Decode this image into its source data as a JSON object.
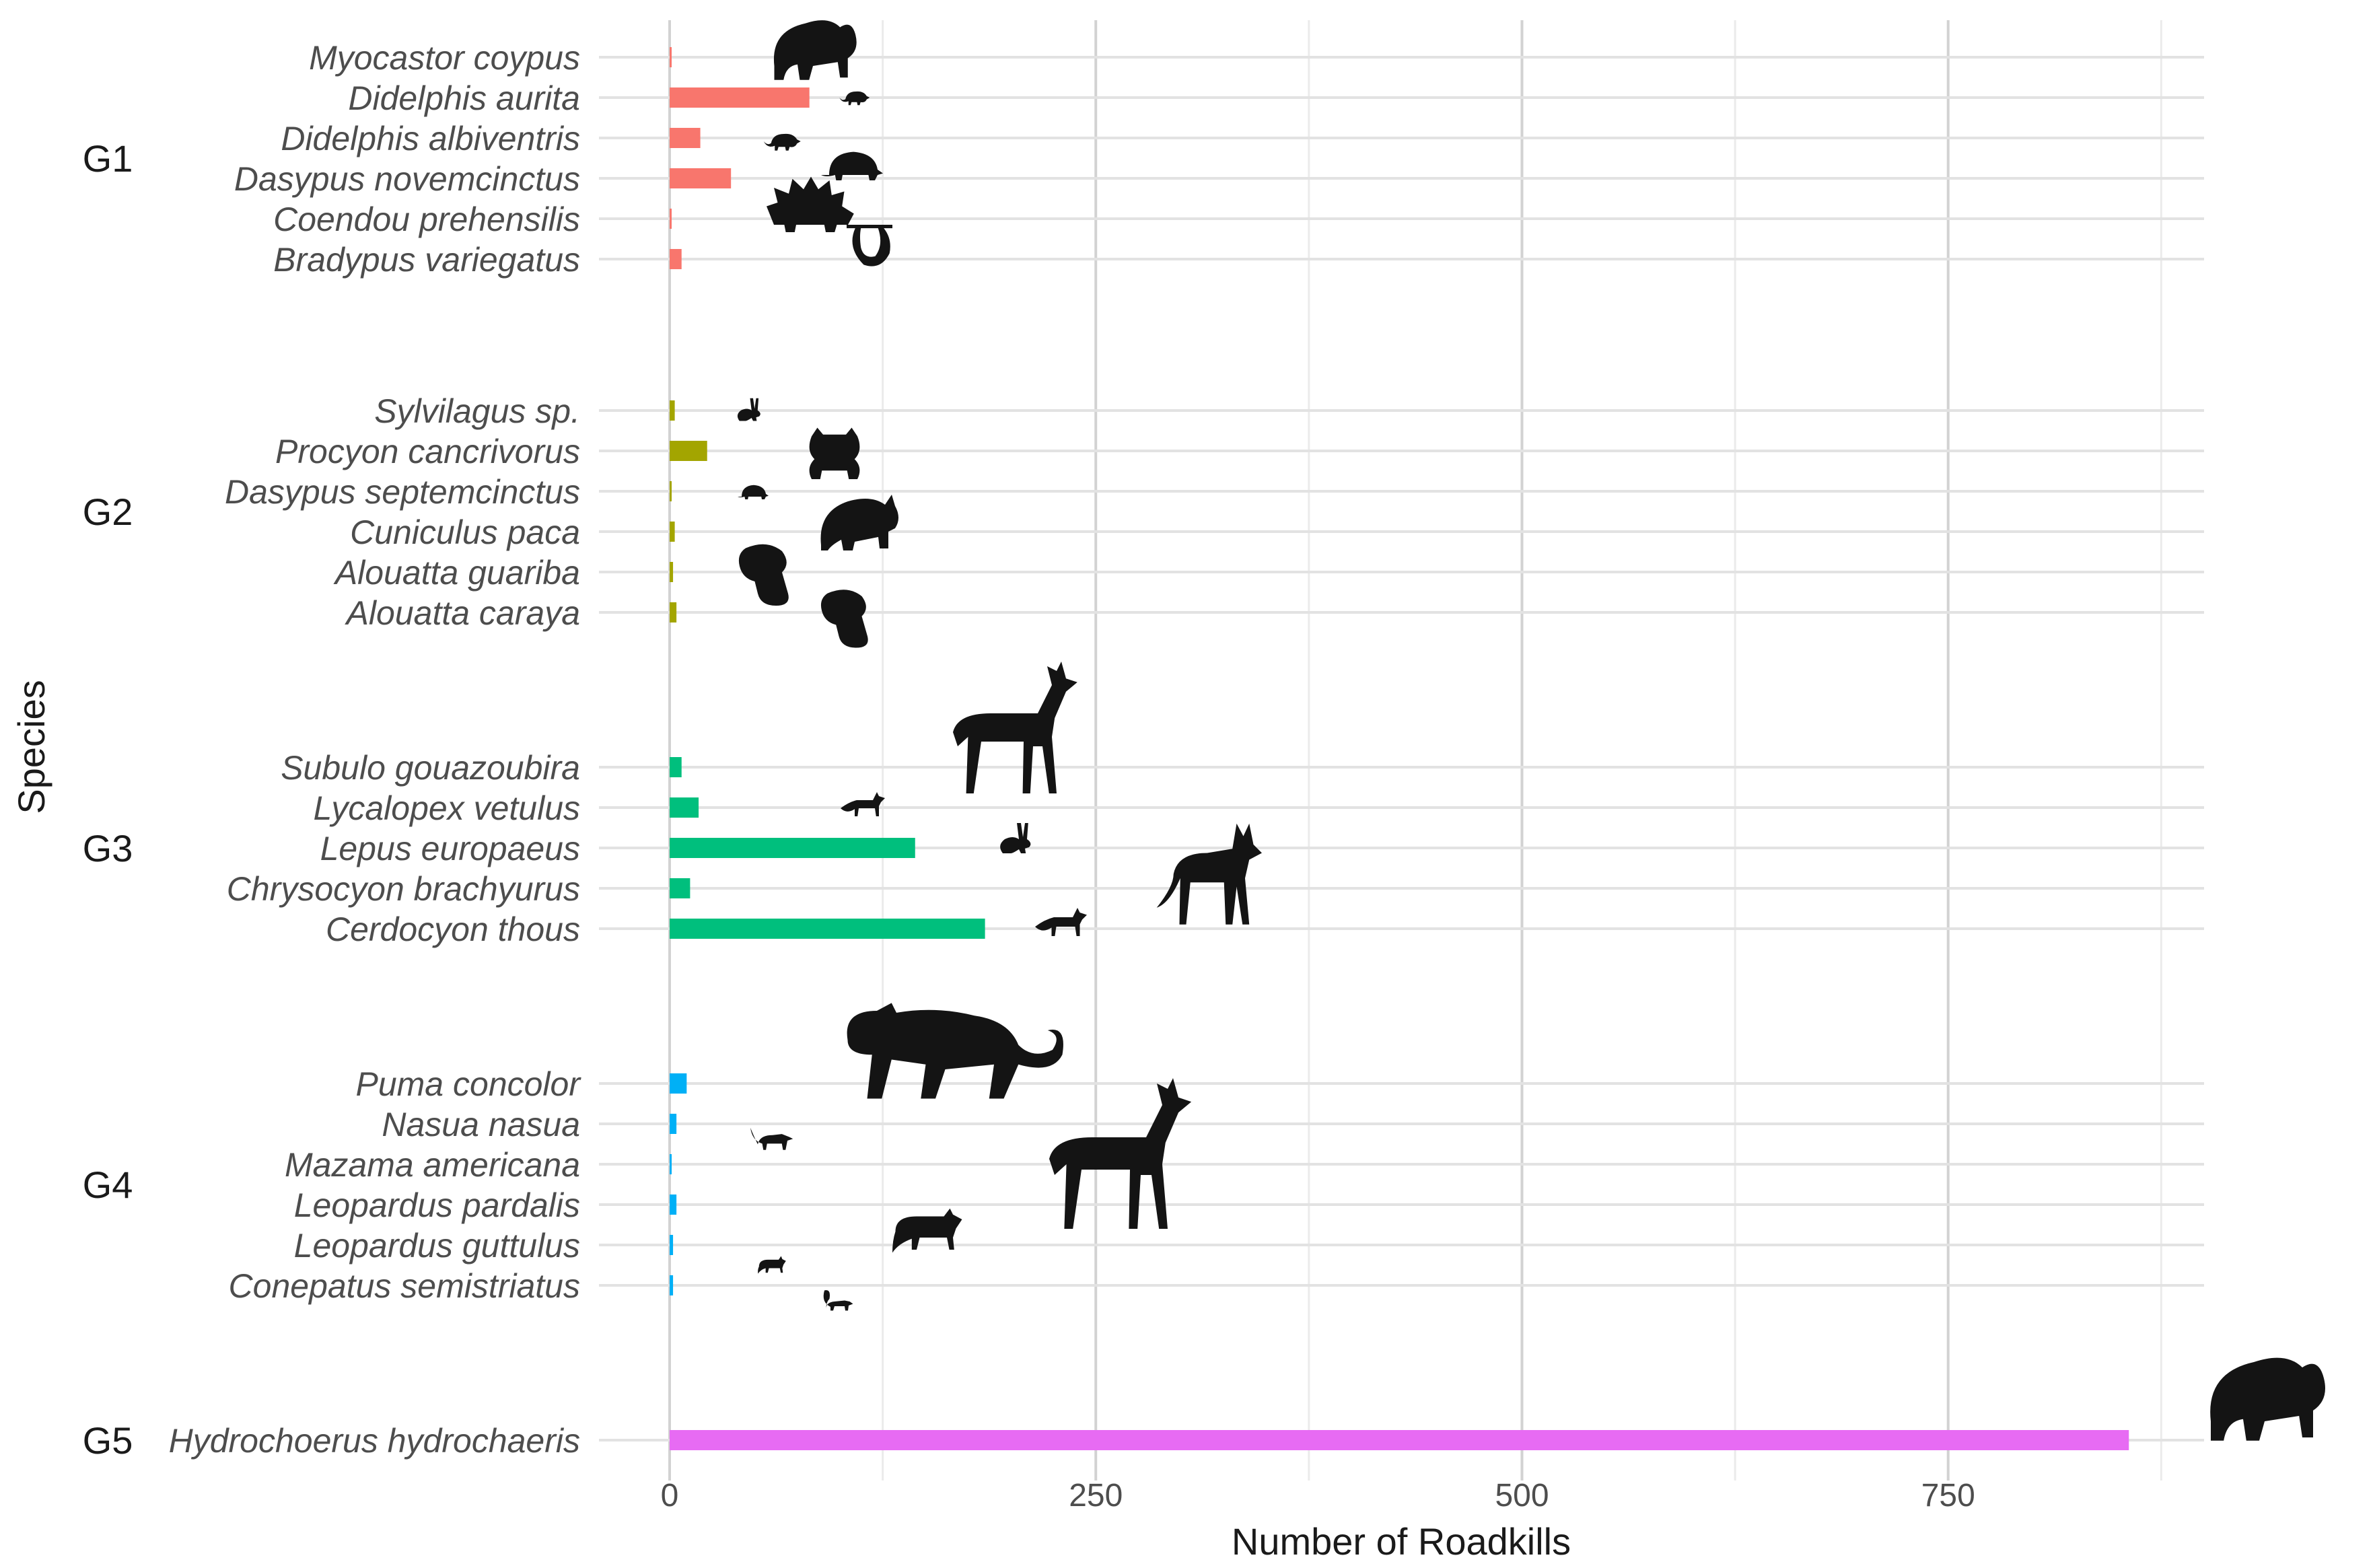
{
  "chart_data": {
    "type": "bar",
    "orientation": "horizontal",
    "xlabel": "Number of Roadkills",
    "ylabel": "Species",
    "xlim": [
      0,
      900
    ],
    "xticks": [
      0,
      250,
      500,
      750
    ],
    "xtick_labels": [
      "0",
      "250",
      "500",
      "750"
    ],
    "grid": "on",
    "legend": "none",
    "groups": [
      {
        "name": "G1",
        "color": "#F8766D",
        "species": [
          "Myocastor coypus",
          "Didelphis aurita",
          "Didelphis albiventris",
          "Dasypus novemcinctus",
          "Coendou prehensilis",
          "Bradypus variegatus"
        ],
        "values": [
          1,
          82,
          18,
          36,
          1,
          7
        ]
      },
      {
        "name": "G2",
        "color": "#A3A500",
        "species": [
          "Sylvilagus sp.",
          "Procyon cancrivorus",
          "Dasypus septemcinctus",
          "Cuniculus paca",
          "Alouatta guariba",
          "Alouatta caraya"
        ],
        "values": [
          3,
          22,
          1,
          3,
          2,
          4
        ]
      },
      {
        "name": "G3",
        "color": "#00BF7D",
        "species": [
          "Subulo gouazoubira",
          "Lycalopex vetulus",
          "Lepus europaeus",
          "Chrysocyon brachyurus",
          "Cerdocyon thous"
        ],
        "values": [
          7,
          17,
          144,
          12,
          185
        ]
      },
      {
        "name": "G4",
        "color": "#00B0F6",
        "species": [
          "Puma concolor",
          "Nasua nasua",
          "Mazama americana",
          "Leopardus pardalis",
          "Leopardus guttulus",
          "Conepatus semistriatus"
        ],
        "values": [
          10,
          4,
          1,
          4,
          2,
          2
        ]
      },
      {
        "name": "G5",
        "color": "#E76BF3",
        "species": [
          "Hydrochoerus hydrochaeris"
        ],
        "values": [
          856
        ]
      }
    ]
  },
  "silhouettes": [
    {
      "icon": "capybara-icon",
      "species": "Myocastor coypus"
    },
    {
      "icon": "opossum-icon",
      "species": "Didelphis aurita"
    },
    {
      "icon": "opossum-icon",
      "species": "Didelphis albiventris"
    },
    {
      "icon": "armadillo-icon",
      "species": "Dasypus novemcinctus"
    },
    {
      "icon": "porcupine-icon",
      "species": "Coendou prehensilis"
    },
    {
      "icon": "sloth-icon",
      "species": "Bradypus variegatus"
    },
    {
      "icon": "rabbit-icon",
      "species": "Sylvilagus sp."
    },
    {
      "icon": "raccoon-icon",
      "species": "Procyon cancrivorus"
    },
    {
      "icon": "armadillo-icon",
      "species": "Dasypus septemcinctus"
    },
    {
      "icon": "paca-icon",
      "species": "Cuniculus paca"
    },
    {
      "icon": "monkey-icon",
      "species": "Alouatta guariba"
    },
    {
      "icon": "monkey-icon",
      "species": "Alouatta caraya"
    },
    {
      "icon": "deer-icon",
      "species": "Subulo gouazoubira"
    },
    {
      "icon": "fox-icon",
      "species": "Lycalopex vetulus"
    },
    {
      "icon": "rabbit-icon",
      "species": "Lepus europaeus"
    },
    {
      "icon": "wolf-icon",
      "species": "Chrysocyon brachyurus"
    },
    {
      "icon": "fox-icon",
      "species": "Cerdocyon thous"
    },
    {
      "icon": "puma-icon",
      "species": "Puma concolor"
    },
    {
      "icon": "coati-icon",
      "species": "Nasua nasua"
    },
    {
      "icon": "deer-icon",
      "species": "Mazama americana"
    },
    {
      "icon": "ocelot-icon",
      "species": "Leopardus pardalis"
    },
    {
      "icon": "cat-icon",
      "species": "Leopardus guttulus"
    },
    {
      "icon": "skunk-icon",
      "species": "Conepatus semistriatus"
    },
    {
      "icon": "capybara-icon",
      "species": "Hydrochoerus hydrochaeris"
    }
  ]
}
